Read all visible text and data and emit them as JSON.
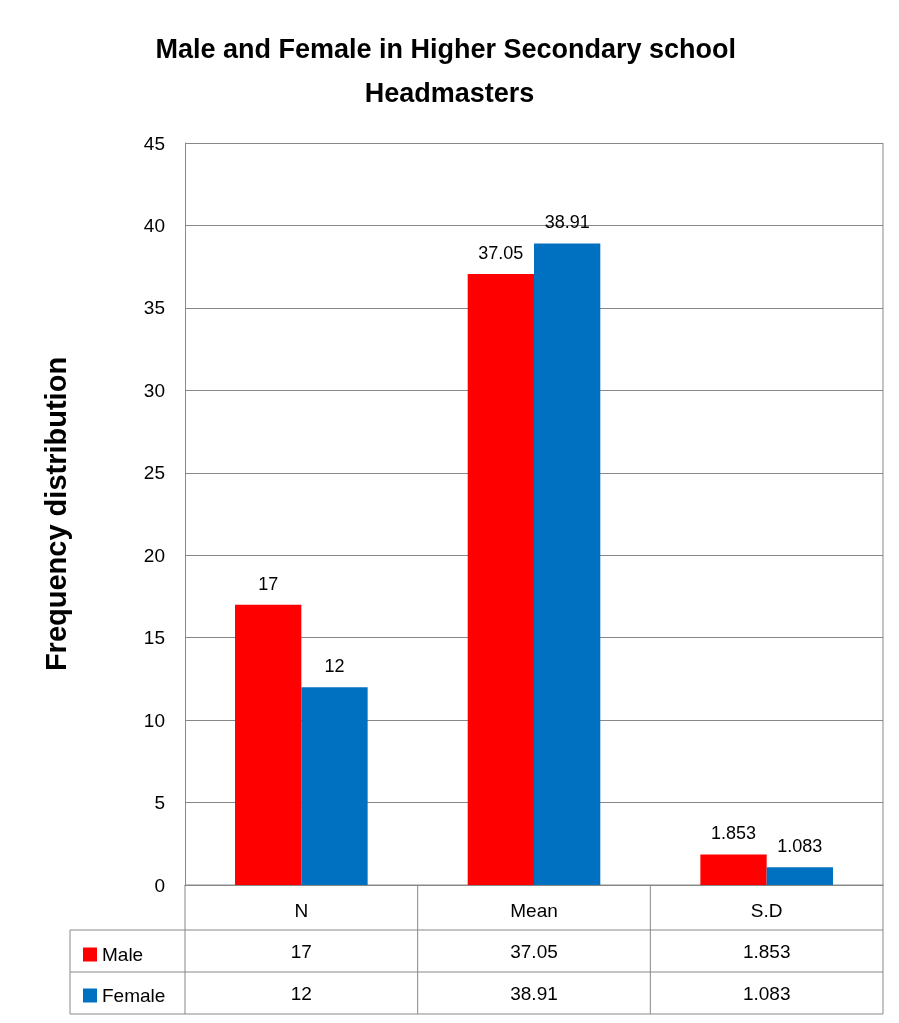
{
  "chart_data": {
    "type": "bar",
    "title": "Male and Female in Higher Secondary school Headmasters",
    "ylabel": "Frequency distribution",
    "categories": [
      "N",
      "Mean",
      "S.D"
    ],
    "series": [
      {
        "name": "Male",
        "color": "#ff0000",
        "values": [
          17,
          37.05,
          1.853
        ]
      },
      {
        "name": "Female",
        "color": "#0070c0",
        "values": [
          12,
          38.91,
          1.083
        ]
      }
    ],
    "annotations": [
      "17",
      "37.05",
      "1.853",
      "12",
      "38.91",
      "1.083"
    ],
    "ylim": [
      0,
      45
    ],
    "yticks": [
      0,
      5,
      10,
      15,
      20,
      25,
      30,
      35,
      40,
      45
    ],
    "grid": "y",
    "data_labels": true,
    "legend": "bottom left"
  }
}
